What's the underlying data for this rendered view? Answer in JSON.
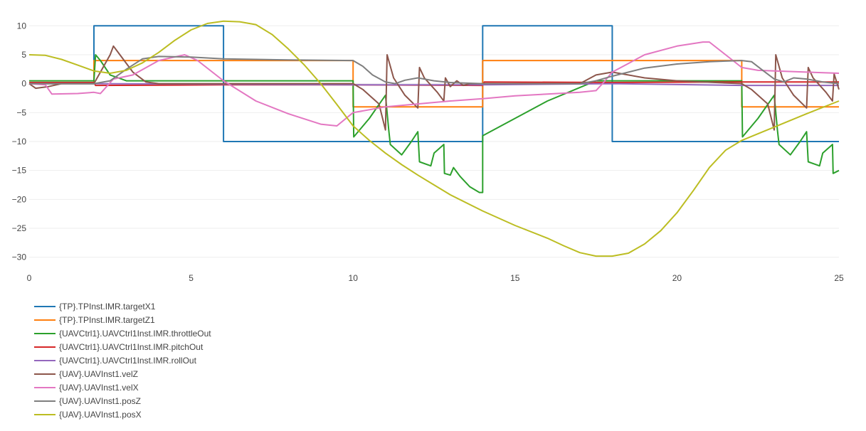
{
  "chart_data": {
    "type": "line",
    "xlim": [
      0,
      25
    ],
    "ylim": [
      -32,
      12
    ],
    "x_ticks": [
      0,
      5,
      10,
      15,
      20,
      25
    ],
    "y_ticks": [
      10,
      5,
      0,
      -5,
      -10,
      -15,
      -20,
      -25,
      -30
    ],
    "x_tick_labels": [
      "0",
      "5",
      "10",
      "15",
      "20",
      "25"
    ],
    "y_tick_labels": [
      "10",
      "5",
      "0",
      "−5",
      "−10",
      "−15",
      "−20",
      "−25",
      "−30"
    ],
    "grid": true,
    "legend_position": "bottom-left",
    "series": [
      {
        "name": "{TP}.TPInst.IMR.targetX1",
        "color": "#1f77b4",
        "x": [
          0,
          2,
          2,
          6,
          6,
          14,
          14,
          18,
          18,
          25
        ],
        "y": [
          0,
          0,
          10,
          10,
          -10,
          -10,
          10,
          10,
          -10,
          -10
        ]
      },
      {
        "name": "{TP}.TPInst.IMR.targetZ1",
        "color": "#ff7f0e",
        "x": [
          0,
          2,
          2,
          10,
          10,
          14,
          14,
          22,
          22,
          25
        ],
        "y": [
          0,
          0,
          4,
          4,
          -4,
          -4,
          4,
          4,
          -4,
          -4
        ]
      },
      {
        "name": "{UAVCtrl1}.UAVCtrl1Inst.IMR.throttleOut",
        "color": "#2ca02c",
        "x": [
          0,
          2,
          2.05,
          2.2,
          2.5,
          3,
          4,
          6,
          8,
          10,
          10.02,
          10.5,
          11,
          11.1,
          11.15,
          11.5,
          11.8,
          12.0,
          12.05,
          12.4,
          12.5,
          12.8,
          12.82,
          13.0,
          13.1,
          13.3,
          13.35,
          13.5,
          13.6,
          13.9,
          14,
          14,
          16,
          17.5,
          18,
          20,
          22,
          22.02,
          22.5,
          23,
          23.1,
          23.15,
          23.5,
          23.8,
          24.0,
          24.05,
          24.4,
          24.5,
          24.8,
          24.82,
          25
        ],
        "y": [
          0.5,
          0.5,
          5,
          4,
          1.5,
          0.5,
          0.5,
          0.5,
          0.5,
          0.5,
          -9.2,
          -6,
          -2,
          -8,
          -10.5,
          -12.3,
          -10,
          -8.3,
          -13.5,
          -14.2,
          -12,
          -10.5,
          -15.5,
          -15.8,
          -14.5,
          -16,
          -16.3,
          -17.2,
          -17.8,
          -18.8,
          -18.8,
          -9,
          -3,
          0.5,
          0.5,
          0.5,
          0.5,
          -9.2,
          -6,
          -2,
          -8,
          -10.5,
          -12.3,
          -10,
          -8.3,
          -13.5,
          -14.2,
          -12,
          -10.5,
          -15.5,
          -15
        ]
      },
      {
        "name": "{UAVCtrl1}.UAVCtrl1Inst.IMR.pitchOut",
        "color": "#d62728",
        "x": [
          0,
          2,
          2.05,
          6,
          10,
          14,
          14.05,
          18,
          22,
          25
        ],
        "y": [
          0.2,
          0.2,
          -0.3,
          -0.2,
          -0.2,
          -0.3,
          0.3,
          0.2,
          0.3,
          0.3
        ]
      },
      {
        "name": "{UAVCtrl1}.UAVCtrl1Inst.IMR.rollOut",
        "color": "#9467bd",
        "x": [
          0,
          2,
          10,
          14,
          18,
          22,
          25
        ],
        "y": [
          0,
          0,
          -0.2,
          -0.2,
          0,
          -0.3,
          -0.3
        ]
      },
      {
        "name": "{UAV}.UAVInst1.velZ",
        "color": "#8c564b",
        "x": [
          0,
          0.2,
          0.6,
          1,
          2,
          2.5,
          2.6,
          2.8,
          3.2,
          3.6,
          4,
          6,
          10,
          10.3,
          10.8,
          11.0,
          11.05,
          11.25,
          11.6,
          12.0,
          12.05,
          12.2,
          12.6,
          12.8,
          12.85,
          13.0,
          13.2,
          13.4,
          13.6,
          14,
          17,
          17.5,
          18,
          19,
          20,
          22,
          22.3,
          22.8,
          23.0,
          23.05,
          23.25,
          23.6,
          24.0,
          24.05,
          24.2,
          24.6,
          24.8,
          24.85,
          25
        ],
        "y": [
          0,
          -0.8,
          -0.5,
          0,
          0,
          5,
          6.5,
          5,
          2,
          0.3,
          0,
          0,
          0,
          -1,
          -3.5,
          -8,
          5,
          1,
          -2,
          -4.2,
          2.8,
          1,
          -1.5,
          -3,
          1,
          -0.5,
          0.5,
          -0.3,
          0,
          0,
          0,
          1.5,
          2,
          1,
          0.5,
          0,
          -1,
          -3.5,
          -8,
          5,
          1,
          -2,
          -4.2,
          2.8,
          1,
          -1.5,
          -3,
          1.7,
          -1
        ]
      },
      {
        "name": "{UAV}.UAVInst1.velX",
        "color": "#e377c2",
        "x": [
          0,
          0.5,
          0.7,
          1.5,
          2.0,
          2.2,
          2.6,
          3.2,
          4,
          4.8,
          5.2,
          6,
          7,
          8,
          9,
          9.5,
          10,
          10.5,
          11,
          12,
          13,
          14,
          15,
          16,
          17,
          17.5,
          17.7,
          18,
          18.5,
          19,
          20,
          20.8,
          21.0,
          21.5,
          22,
          22.5,
          25
        ],
        "y": [
          0,
          -0.2,
          -1.8,
          -1.7,
          -1.5,
          -1.7,
          0.8,
          1.5,
          4,
          5,
          4,
          0.5,
          -3,
          -5.2,
          -7,
          -7.3,
          -5,
          -4.5,
          -4,
          -3.5,
          -3,
          -2.6,
          -2.1,
          -1.8,
          -1.5,
          -1.2,
          0,
          2,
          3.5,
          5,
          6.5,
          7.2,
          7.2,
          5,
          2.8,
          2.3,
          1.8
        ]
      },
      {
        "name": "{UAV}.UAVInst1.posZ",
        "color": "#7f7f7f",
        "x": [
          0,
          2,
          2.5,
          3,
          3.5,
          4,
          5,
          6,
          8,
          10,
          10.3,
          10.6,
          11,
          11.3,
          11.6,
          12,
          12.5,
          13,
          14,
          16,
          17,
          17.5,
          18,
          19,
          20,
          21,
          22,
          22.3,
          22.6,
          23,
          23.3,
          23.6,
          24,
          24.5,
          25
        ],
        "y": [
          0,
          0,
          0.5,
          2.5,
          4.3,
          4.7,
          4.6,
          4.3,
          4.1,
          4,
          3,
          1.5,
          0.3,
          0,
          0.6,
          1,
          0.5,
          0.2,
          0,
          0,
          0,
          0.5,
          1.3,
          2.7,
          3.4,
          3.8,
          4,
          3.8,
          2.5,
          0.8,
          0.3,
          1,
          0.8,
          0.3,
          0
        ]
      },
      {
        "name": "{UAV}.UAVInst1.posX",
        "color": "#bcbd22",
        "x": [
          0,
          0.5,
          1,
          1.5,
          2,
          2.5,
          3,
          3.5,
          4,
          4.5,
          5,
          5.5,
          6,
          6.5,
          7,
          7.5,
          8,
          8.5,
          9,
          9.5,
          10,
          10.5,
          11,
          11.5,
          12,
          13,
          14,
          15,
          16,
          16.5,
          17,
          17.5,
          18,
          18.5,
          19,
          19.5,
          20,
          20.5,
          21,
          21.5,
          22,
          23,
          24,
          25
        ],
        "y": [
          5,
          4.9,
          4.2,
          3.2,
          2.2,
          1.8,
          2.3,
          3.6,
          5.4,
          7.5,
          9.3,
          10.4,
          10.8,
          10.7,
          10.2,
          8.5,
          6,
          3.2,
          0,
          -3.6,
          -7.3,
          -9.8,
          -12,
          -14,
          -15.8,
          -19.2,
          -22,
          -24.5,
          -26.7,
          -28,
          -29.2,
          -29.8,
          -29.8,
          -29.3,
          -27.7,
          -25.4,
          -22.3,
          -18.5,
          -14.5,
          -11.5,
          -9.8,
          -7.5,
          -5.2,
          -3
        ]
      }
    ]
  }
}
